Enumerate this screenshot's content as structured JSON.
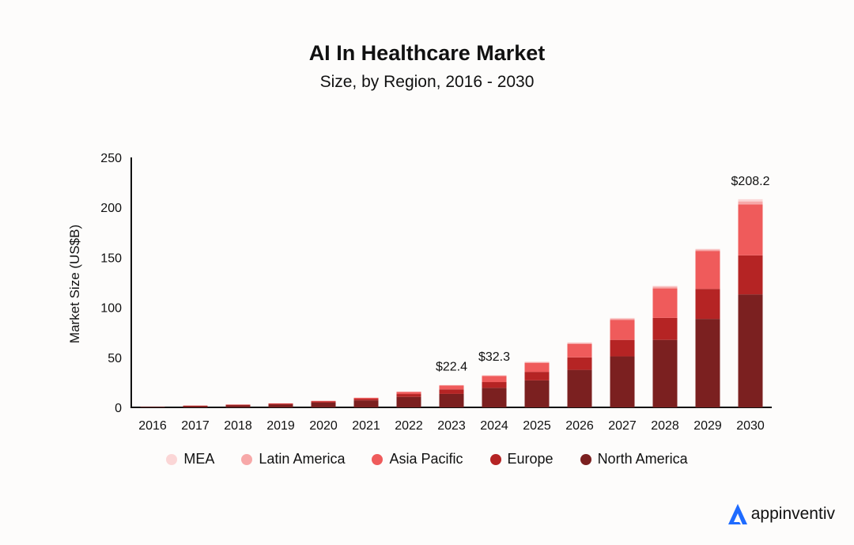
{
  "header": {
    "title": "AI In Healthcare Market",
    "subtitle": "Size, by Region, 2016 - 2030"
  },
  "brand": {
    "name": "appinventiv",
    "logo_icon": "appinventiv-logo-icon",
    "color": "#1f6bff"
  },
  "chart_data": {
    "type": "bar",
    "stacked": true,
    "title": "AI In Healthcare Market",
    "subtitle": "Size, by Region, 2016 - 2030",
    "xlabel": "",
    "ylabel": "Market Size (US$B)",
    "ylim": [
      0,
      250
    ],
    "yticks": [
      0,
      50,
      100,
      150,
      200,
      250
    ],
    "grid": false,
    "legend_position": "bottom",
    "categories": [
      "2016",
      "2017",
      "2018",
      "2019",
      "2020",
      "2021",
      "2022",
      "2023",
      "2024",
      "2025",
      "2026",
      "2027",
      "2028",
      "2029",
      "2030"
    ],
    "series": [
      {
        "name": "North America",
        "color": "#7b2020",
        "values": [
          0.3,
          1.2,
          2.0,
          2.8,
          4.8,
          7.0,
          10.5,
          13.5,
          19.5,
          27.0,
          37.5,
          51.0,
          67.5,
          88.5,
          113.0
        ]
      },
      {
        "name": "Europe",
        "color": "#b52424",
        "values": [
          0.1,
          0.4,
          0.6,
          0.8,
          1.2,
          1.6,
          2.9,
          4.5,
          5.8,
          8.5,
          12.5,
          16.5,
          22.0,
          30.0,
          39.0
        ]
      },
      {
        "name": "Asia Pacific",
        "color": "#ef5b5b",
        "values": [
          0.1,
          0.2,
          0.3,
          0.4,
          0.5,
          0.9,
          2.0,
          3.8,
          6.0,
          9.0,
          13.5,
          20.0,
          29.5,
          38.0,
          51.0
        ]
      },
      {
        "name": "Latin America",
        "color": "#f7a8a8",
        "values": [
          0.0,
          0.1,
          0.1,
          0.1,
          0.1,
          0.2,
          0.3,
          0.4,
          0.6,
          0.8,
          0.9,
          1.3,
          1.7,
          1.3,
          3.0
        ]
      },
      {
        "name": "MEA",
        "color": "#fbd6d6",
        "values": [
          0.0,
          0.0,
          0.0,
          0.0,
          0.1,
          0.1,
          0.1,
          0.2,
          0.4,
          0.5,
          0.6,
          0.7,
          0.8,
          0.7,
          2.2
        ]
      }
    ],
    "annotations": [
      {
        "category": "2023",
        "text": "$22.4"
      },
      {
        "category": "2024",
        "text": "$32.3"
      },
      {
        "category": "2030",
        "text": "$208.2"
      }
    ]
  }
}
